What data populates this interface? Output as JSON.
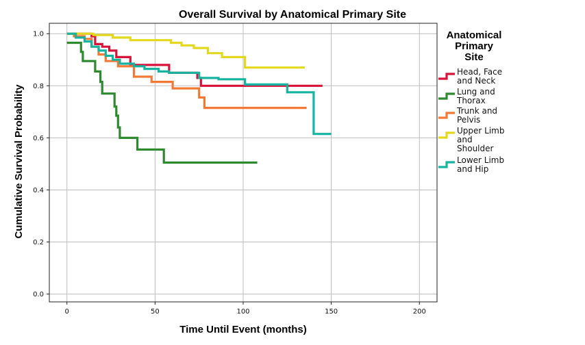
{
  "chart_data": {
    "type": "line",
    "subtype": "kaplan-meier-step",
    "title": "Overall Survival by Anatomical Primary Site",
    "xlabel": "Time Until Event (months)",
    "ylabel": "Cumulative Survival Probability",
    "xlim": [
      -10,
      210
    ],
    "ylim": [
      -0.03,
      1.04
    ],
    "x_ticks": [
      0,
      50,
      100,
      150,
      200
    ],
    "y_ticks": [
      0.0,
      0.2,
      0.4,
      0.6,
      0.8,
      1.0
    ],
    "x_tick_labels": [
      "0",
      "50",
      "100",
      "150",
      "200"
    ],
    "y_tick_labels": [
      "0.0",
      "0.2",
      "0.4",
      "0.6",
      "0.8",
      "1.0"
    ],
    "grid": true,
    "legend": {
      "title_lines": [
        "Anatomical",
        "Primary",
        "Site"
      ],
      "position": "right"
    },
    "series": [
      {
        "name": "Head, Face and Neck",
        "label_lines": [
          "Head, Face",
          "and Neck"
        ],
        "color": "#d7133a",
        "x": [
          0,
          14,
          16,
          20,
          24,
          28,
          36,
          58,
          74,
          76,
          145
        ],
        "y": [
          1.0,
          0.99,
          0.96,
          0.95,
          0.935,
          0.91,
          0.88,
          0.85,
          0.83,
          0.8,
          0.8
        ]
      },
      {
        "name": "Lung and Thorax",
        "label_lines": [
          "Lung and",
          "Thorax"
        ],
        "color": "#2e8a2e",
        "x": [
          0,
          8,
          9,
          16,
          19,
          20,
          27,
          28,
          29,
          30,
          40,
          55,
          108
        ],
        "y": [
          0.965,
          0.93,
          0.895,
          0.855,
          0.815,
          0.77,
          0.72,
          0.685,
          0.64,
          0.6,
          0.555,
          0.505,
          0.505
        ]
      },
      {
        "name": "Trunk and Pelvis",
        "label_lines": [
          "Trunk and",
          "Pelvis"
        ],
        "color": "#f37a36",
        "x": [
          0,
          4,
          10,
          14,
          18,
          22,
          29,
          38,
          48,
          60,
          75,
          78,
          80,
          136
        ],
        "y": [
          1.0,
          0.99,
          0.98,
          0.95,
          0.92,
          0.895,
          0.875,
          0.835,
          0.815,
          0.79,
          0.755,
          0.715,
          0.715,
          0.715
        ]
      },
      {
        "name": "Upper Limb and Shoulder",
        "label_lines": [
          "Upper Limb",
          "and",
          "Shoulder"
        ],
        "color": "#e4d81e",
        "x": [
          0,
          15,
          26,
          36,
          59,
          65,
          72,
          80,
          88,
          101,
          135
        ],
        "y": [
          1.0,
          0.995,
          0.985,
          0.975,
          0.965,
          0.955,
          0.945,
          0.925,
          0.91,
          0.87,
          0.87
        ]
      },
      {
        "name": "Lower Limb and Hip",
        "label_lines": [
          "Lower Limb",
          "and Hip"
        ],
        "color": "#16b3a0",
        "x": [
          0,
          5,
          10,
          14,
          18,
          22,
          26,
          30,
          38,
          44,
          52,
          58,
          75,
          86,
          101,
          125,
          140,
          150
        ],
        "y": [
          1.0,
          0.985,
          0.97,
          0.95,
          0.935,
          0.915,
          0.9,
          0.885,
          0.875,
          0.865,
          0.855,
          0.85,
          0.83,
          0.825,
          0.805,
          0.775,
          0.615,
          0.615
        ]
      }
    ]
  }
}
